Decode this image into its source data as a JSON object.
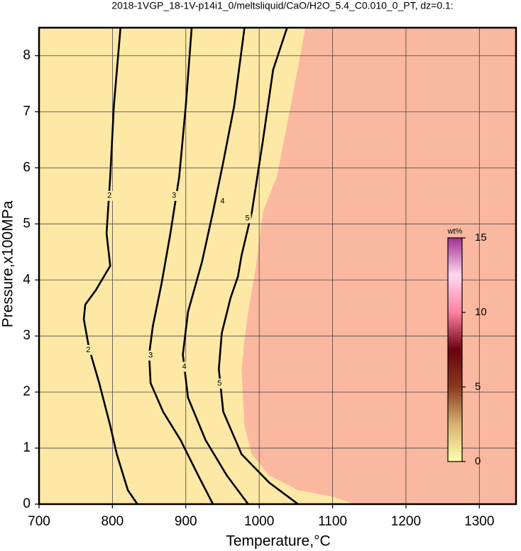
{
  "chart_data": {
    "type": "contour",
    "title": "2018-1VGP_18-1V-p14i1_0/meltsliquid/CaO/H2O_5.4_C0.010_0_PT, dz=0.1:",
    "x_label": "Temperature,°C",
    "y_label": "Pressure,x100MPa",
    "xlim": [
      700,
      1350
    ],
    "ylim": [
      0,
      8.5
    ],
    "xticks": [
      700,
      800,
      900,
      1000,
      1100,
      1200,
      1300
    ],
    "yticks": [
      0,
      1,
      2,
      3,
      4,
      5,
      6,
      7,
      8
    ],
    "grid": true,
    "background_colors": [
      "#fde8a5",
      "#fbb8a0"
    ],
    "fill_boundary": {
      "x": [
        1130,
        1101,
        1053,
        1014,
        990,
        980,
        976,
        980,
        985,
        995,
        1005,
        1024,
        1043,
        1063
      ],
      "y": [
        0,
        0.13,
        0.25,
        0.51,
        0.89,
        1.4,
        2.41,
        2.92,
        3.43,
        4.19,
        5.21,
        5.84,
        7.11,
        8.5
      ]
    },
    "series": [
      {
        "name": "2",
        "color": "#000000",
        "x": [
          834,
          821,
          806,
          797,
          782,
          768,
          761,
          763,
          777,
          797,
          792,
          797,
          802,
          811
        ],
        "y": [
          0,
          0.25,
          0.89,
          1.4,
          2.16,
          2.79,
          3.3,
          3.56,
          3.81,
          4.25,
          4.83,
          5.84,
          7.11,
          8.5
        ]
      },
      {
        "name": "3",
        "color": "#000000",
        "x": [
          937,
          917,
          893,
          869,
          852,
          850,
          855,
          867,
          879,
          891,
          900,
          908
        ],
        "y": [
          0,
          0.51,
          1.14,
          1.65,
          2.16,
          2.67,
          3.17,
          3.94,
          4.83,
          5.84,
          7.11,
          8.5
        ]
      },
      {
        "name": "4",
        "color": "#000000",
        "x": [
          985,
          956,
          927,
          903,
          896,
          903,
          922,
          937,
          951,
          966,
          980
        ],
        "y": [
          0,
          0.51,
          1.14,
          1.9,
          2.67,
          3.43,
          4.32,
          5.21,
          6.1,
          7.11,
          8.5
        ]
      },
      {
        "name": "5",
        "color": "#000000",
        "x": [
          1053,
          1014,
          976,
          951,
          945,
          949,
          961,
          971,
          976,
          990,
          1005,
          1019,
          1038
        ],
        "y": [
          0,
          0.38,
          0.89,
          1.65,
          2.41,
          3.05,
          3.68,
          4.06,
          4.44,
          5.21,
          6.48,
          7.75,
          8.5
        ]
      }
    ],
    "contour_labels": [
      {
        "series": 0,
        "x": 796,
        "y": 5.5
      },
      {
        "series": 0,
        "x": 767,
        "y": 2.75
      },
      {
        "series": 1,
        "x": 884,
        "y": 5.5
      },
      {
        "series": 1,
        "x": 852,
        "y": 2.65
      },
      {
        "series": 2,
        "x": 950,
        "y": 5.4
      },
      {
        "series": 2,
        "x": 898,
        "y": 2.45
      },
      {
        "series": 3,
        "x": 984,
        "y": 5.1
      },
      {
        "series": 3,
        "x": 946,
        "y": 2.15
      }
    ],
    "colorbar": {
      "label": "wt%",
      "lim": [
        0,
        15
      ],
      "ticks": [
        0,
        5,
        10,
        15
      ],
      "colors": [
        "#ffffb0",
        "#d8b070",
        "#8a3a20",
        "#6a0010",
        "#ff80a0",
        "#ffd8f0",
        "#a03090"
      ]
    }
  }
}
